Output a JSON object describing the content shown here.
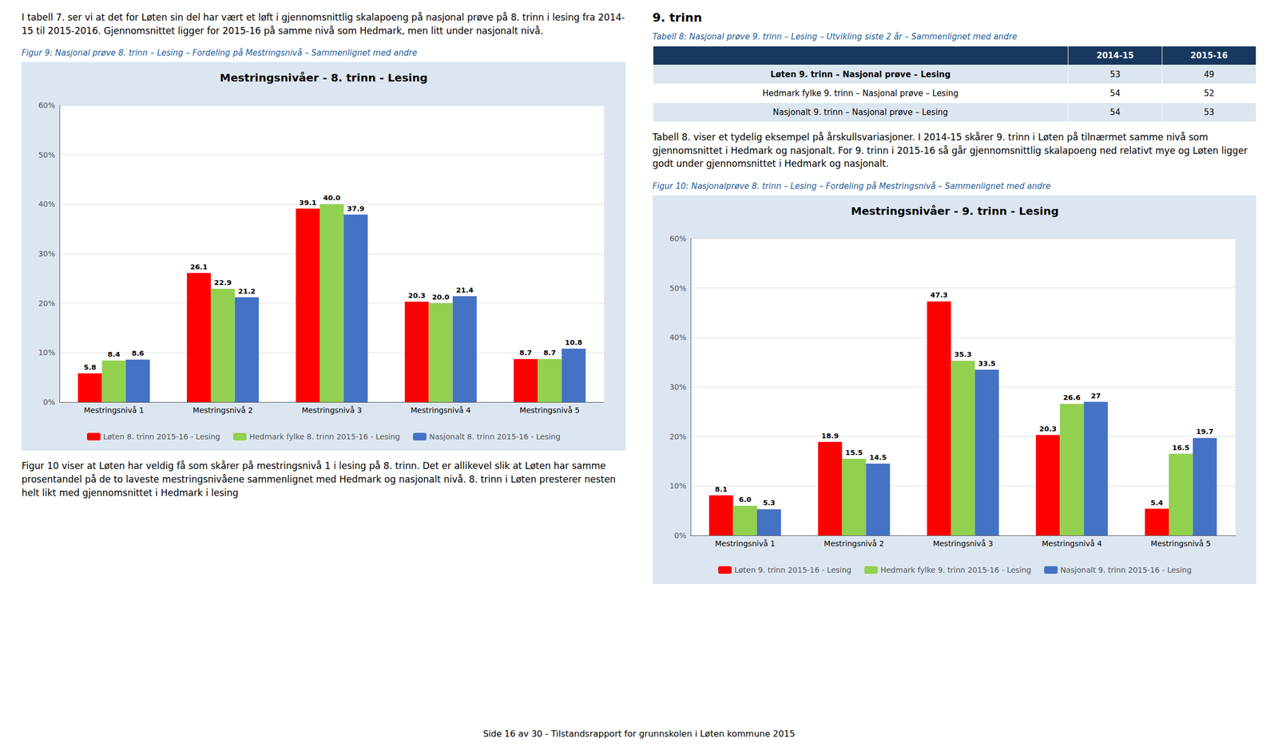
{
  "paragraphs": [
    "I tabell 7. ser vi at det for Løten sin del har vært et løft i gjennomsnittlig skalapoeng på nasjonal prøve på 8. trinn i lesing fra 2014-15 til 2015-2016. Gjennomsnittet ligger for 2015-16 på samme nivå som Hedmark, men litt under nasjonalt nivå.",
    "Figur 10 viser at Løten har veldig få som skårer på mestringsnivå 1 i lesing på 8. trinn. Det er allikevel slik at Løten har samme prosentandel på de to laveste mestringsnivåene sammenlignet med Hedmark og nasjonalt nivå. 8. trinn i Løten presterer nesten helt likt med gjennomsnittet i Hedmark i lesing",
    "Tabell 8. viser et tydelig eksempel på årskullsvariasjoner. I 2014-15 skårer 9. trinn i Løten på tilnærmet samme nivå som gjennomsnittet i Hedmark og nasjonalt. For 9. trinn i 2015-16 så går gjennomsnittlig skalapoeng ned relativt mye og Løten ligger godt under gjennomsnittet i Hedmark og nasjonalt."
  ],
  "captions": [
    "Figur 9: Nasjonal prøve 8. trinn – Lesing – Fordeling på Mestringsnivå – Sammenlignet med andre",
    "Tabell 8: Nasjonal prøve 9. trinn – Lesing – Utvikling siste 2 år – Sammenlignet med andre",
    "Figur 10: Nasjonalprøve 8. trinn – Lesing – Fordeling på Mestringsnivå – Sammenlignet med andre"
  ],
  "heading": "9. trinn",
  "table": {
    "columns": [
      "2014-15",
      "2015-16"
    ],
    "rows": [
      {
        "label": "Løten 9. trinn – Nasjonal prøve – Lesing",
        "values": [
          53,
          49
        ]
      },
      {
        "label": "Hedmark fylke 9. trinn – Nasjonal prøve – Lesing",
        "values": [
          54,
          52
        ]
      },
      {
        "label": "Nasjonalt 9. trinn – Nasjonal prøve – Lesing",
        "values": [
          54,
          53
        ]
      }
    ]
  },
  "footer": "Side 16 av 30 - Tilstandsrapport for grunnskolen i Løten kommune 2015",
  "chart_data": [
    {
      "type": "bar",
      "title": "Mestringsnivåer - 8. trinn - Lesing",
      "categories": [
        "Mestringsnivå 1",
        "Mestringsnivå 2",
        "Mestringsnivå 3",
        "Mestringsnivå 4",
        "Mestringsnivå 5"
      ],
      "series": [
        {
          "name": "Løten 8. trinn 2015-16 - Lesing",
          "color": "#ff0000",
          "values": [
            5.8,
            26.1,
            39.1,
            20.3,
            8.7
          ]
        },
        {
          "name": "Hedmark fylke 8. trinn 2015-16 - Lesing",
          "color": "#92d050",
          "values": [
            8.4,
            22.9,
            40.0,
            20.0,
            8.7
          ],
          "value_labels": [
            "8.4",
            "22.9",
            "40.0",
            "20.0",
            "8.7"
          ]
        },
        {
          "name": "Nasjonalt 8. trinn 2015-16 - Lesing",
          "color": "#4472c4",
          "values": [
            8.6,
            21.2,
            37.9,
            21.4,
            10.8
          ]
        }
      ],
      "ylim": [
        0,
        60
      ],
      "yticks": [
        {
          "value": 0,
          "label": "0%"
        },
        {
          "value": 10,
          "label": "10%"
        },
        {
          "value": 20,
          "label": "20%"
        },
        {
          "value": 30,
          "label": "30%"
        },
        {
          "value": 40,
          "label": "40%"
        },
        {
          "value": 50,
          "label": "50%"
        },
        {
          "value": 60,
          "label": "60%"
        }
      ],
      "grid": true,
      "legend": "bottom",
      "data_labels": true
    },
    {
      "type": "bar",
      "title": "Mestringsnivåer - 9. trinn - Lesing",
      "categories": [
        "Mestringsnivå 1",
        "Mestringsnivå 2",
        "Mestringsnivå 3",
        "Mestringsnivå 4",
        "Mestringsnivå 5"
      ],
      "series": [
        {
          "name": "Løten 9. trinn 2015-16 - Lesing",
          "color": "#ff0000",
          "values": [
            8.1,
            18.9,
            47.3,
            20.3,
            5.4
          ]
        },
        {
          "name": "Hedmark fylke 9. trinn 2015-16 - Lesing",
          "color": "#92d050",
          "values": [
            6.0,
            15.5,
            35.3,
            26.6,
            16.5
          ],
          "value_labels": [
            "6.0",
            "15.5",
            "35.3",
            "26.6",
            "16.5"
          ]
        },
        {
          "name": "Nasjonalt 9. trinn 2015-16 - Lesing",
          "color": "#4472c4",
          "values": [
            5.3,
            14.5,
            33.5,
            27.0,
            19.7
          ]
        }
      ],
      "ylim": [
        0,
        60
      ],
      "yticks": [
        {
          "value": 0,
          "label": "0%"
        },
        {
          "value": 10,
          "label": "10%"
        },
        {
          "value": 20,
          "label": "20%"
        },
        {
          "value": 30,
          "label": "30%"
        },
        {
          "value": 40,
          "label": "40%"
        },
        {
          "value": 50,
          "label": "50%"
        },
        {
          "value": 60,
          "label": "60%"
        }
      ],
      "grid": true,
      "legend": "bottom",
      "data_labels": true
    }
  ]
}
